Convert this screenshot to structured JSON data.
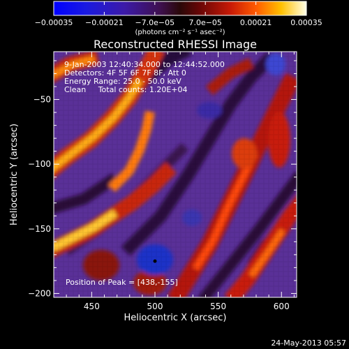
{
  "chart_data": {
    "type": "heatmap",
    "title": "Reconstructed RHESSI Image",
    "xlabel": "Heliocentric X (arcsec)",
    "ylabel": "Heliocentric Y (arcsec)",
    "xlim": [
      420,
      612
    ],
    "ylim": [
      -203,
      -13
    ],
    "x_ticks": [
      450,
      500,
      550,
      600
    ],
    "y_ticks": [
      -50,
      -100,
      -150,
      -200
    ],
    "colorbar": {
      "min": -0.00035,
      "max": 0.00035,
      "tick_values": [
        -0.00035,
        -0.00021,
        -7e-05,
        7e-05,
        0.00021,
        0.00035
      ],
      "tick_labels": [
        "-0.00035",
        "-0.00021",
        "-7.0e-05",
        "7.0e-05",
        "0.00021",
        "0.00035"
      ],
      "unit_label": "(photons cm⁻² s⁻¹ asec⁻²)"
    },
    "annotations": [
      "9-Jan-2003 12:40:34.000 to 12:44:52.000",
      "Detectors: 4F 5F 6F 7F 8F, Att 0",
      "Energy Range: 25.0 - 50.0 keV",
      "Clean     Total counts: 1.20E+04"
    ],
    "peak_label": "Position of Peak = [438,-155]",
    "marked_point": {
      "x": 500,
      "y": -175
    },
    "footer": "24-May-2013 05:57"
  }
}
